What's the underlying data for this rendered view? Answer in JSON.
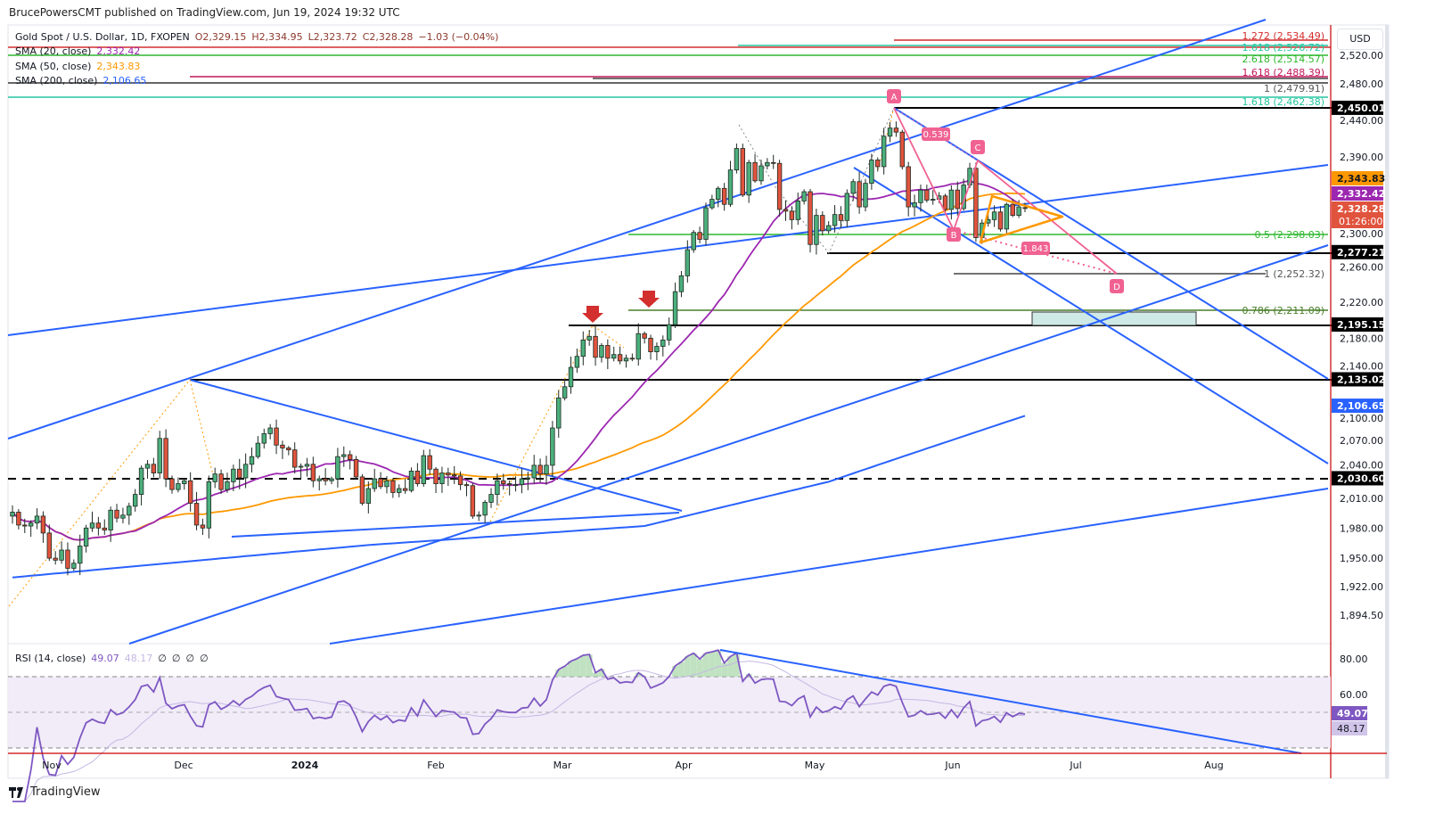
{
  "publisher_line": "BrucePowersCMT published on TradingView.com, Jun 19, 2024 19:32 UTC",
  "header": {
    "symbol": "Gold Spot / U.S. Dollar, 1D, FXOPEN",
    "open": "O2,329.15",
    "high": "H2,334.95",
    "low": "L2,323.72",
    "close": "C2,328.28",
    "change": "−1.03 (−0.04%)"
  },
  "legend": {
    "sma20": {
      "label": "SMA (20, close)",
      "value": "2,332.42",
      "color": "#9c27b0"
    },
    "sma50": {
      "label": "SMA (50, close)",
      "value": "2,343.83",
      "color": "#ff9800"
    },
    "sma200": {
      "label": "SMA (200, close)",
      "value": "2,106.65",
      "color": "#2962ff"
    }
  },
  "currency_button": "USD",
  "chart_data": {
    "type": "candlestick",
    "symbol": "XAUUSD",
    "timeframe": "1D",
    "y_scale": "log",
    "ylim": [
      1880,
      2545
    ],
    "grid": false,
    "closes": [
      1996,
      1983,
      1982,
      1985,
      1992,
      1975,
      1950,
      1948,
      1958,
      1940,
      1945,
      1962,
      1980,
      1985,
      1980,
      1978,
      1998,
      1990,
      1993,
      2002,
      2014,
      2041,
      2045,
      2036,
      2072,
      2030,
      2019,
      2025,
      2028,
      2005,
      1983,
      1980,
      2027,
      2035,
      2019,
      2027,
      2040,
      2031,
      2045,
      2053,
      2067,
      2077,
      2083,
      2065,
      2062,
      2060,
      2042,
      2043,
      2045,
      2028,
      2030,
      2028,
      2030,
      2053,
      2055,
      2050,
      2032,
      2005,
      2020,
      2030,
      2022,
      2028,
      2016,
      2020,
      2018,
      2038,
      2025,
      2054,
      2040,
      2025,
      2036,
      2034,
      2033,
      2024,
      2023,
      1992,
      1993,
      2006,
      2014,
      2028,
      2025,
      2024,
      2024,
      2030,
      2031,
      2044,
      2035,
      2044,
      2083,
      2115,
      2127,
      2148,
      2160,
      2178,
      2182,
      2159,
      2172,
      2158,
      2162,
      2155,
      2158,
      2157,
      2185,
      2180,
      2165,
      2171,
      2178,
      2195,
      2232,
      2250,
      2280,
      2300,
      2292,
      2329,
      2339,
      2352,
      2333,
      2374,
      2400,
      2344,
      2383,
      2361,
      2379,
      2383,
      2382,
      2327,
      2325,
      2315,
      2337,
      2348,
      2286,
      2320,
      2302,
      2308,
      2321,
      2314,
      2346,
      2360,
      2330,
      2358,
      2386,
      2378,
      2415,
      2425,
      2420,
      2378,
      2330,
      2335,
      2350,
      2338,
      2339,
      2343,
      2327,
      2350,
      2328,
      2356,
      2376,
      2294,
      2311,
      2315,
      2324,
      2304,
      2333,
      2320,
      2330,
      2328
    ],
    "sma200_anchors": [
      [
        0,
        1931
      ],
      [
        58,
        1963
      ],
      [
        103,
        1982
      ],
      [
        133,
        2027
      ],
      [
        170,
        2106.65
      ]
    ],
    "last": {
      "open": 2329.15,
      "high": 2334.95,
      "low": 2323.72,
      "close": 2328.28
    },
    "colors": {
      "up": "#4caf7d",
      "down": "#e0533d",
      "sma20": "#9c27b0",
      "sma50": "#ff9800",
      "sma200": "#2962ff",
      "trendline": "#2962ff",
      "pattern": "#f06292"
    }
  },
  "price_axis": {
    "ticks": [
      "2,520.00",
      "2,480.00",
      "2,440.00",
      "2,390.00",
      "2,300.00",
      "2,260.00",
      "2,220.00",
      "2,180.00",
      "2,140.00",
      "2,100.00",
      "2,070.00",
      "2,040.00",
      "2,010.00",
      "1,980.00",
      "1,950.00",
      "1,922.00",
      "1,894.50"
    ],
    "badges": [
      {
        "value": "2,450.01",
        "color": "#000000"
      },
      {
        "value": "2,343.83",
        "color": "#ff9800"
      },
      {
        "value": "2,332.42",
        "color": "#9c27b0"
      },
      {
        "value": "2,328.28",
        "countdown": "01:26:00",
        "color": "#e0533d"
      },
      {
        "value": "2,277.21",
        "color": "#000000"
      },
      {
        "value": "2,195.15",
        "color": "#000000"
      },
      {
        "value": "2,135.02",
        "color": "#000000"
      },
      {
        "value": "2,106.65",
        "color": "#2962ff"
      },
      {
        "value": "2,030.60",
        "color": "#000000"
      }
    ]
  },
  "fib_labels": [
    {
      "text": "1.272 (2,534.49)",
      "color": "#d32f2f"
    },
    {
      "text": "1.618 (2,526.72)",
      "color": "#26c6a0"
    },
    {
      "text": "2.618 (2,514.57)",
      "color": "#2eb82e"
    },
    {
      "text": "1.618 (2,488.39)",
      "color": "#c2185b"
    },
    {
      "text": "1 (2,479.91)",
      "color": "#555555"
    },
    {
      "text": "1.618 (2,462.38)",
      "color": "#26c6a0"
    },
    {
      "text": "0.5 (2,298.03)",
      "color": "#2eb82e"
    },
    {
      "text": "1 (2,252.32)",
      "color": "#555555"
    },
    {
      "text": "0.786 (2,211.09)",
      "color": "#4a7f2a"
    }
  ],
  "pattern": {
    "points": [
      "A",
      "B",
      "C",
      "D"
    ],
    "ratio_bc": "0.539",
    "ratio_cd": "1.843"
  },
  "time_axis": [
    "Nov",
    "Dec",
    "2024",
    "Feb",
    "Mar",
    "Apr",
    "May",
    "Jun",
    "Jul",
    "Aug"
  ],
  "rsi": {
    "label": "RSI (14, close)",
    "value": "49.07",
    "ma_value": "48.17",
    "extra": [
      "∅",
      "∅",
      "∅",
      "∅"
    ],
    "ticks": [
      "80.00",
      "60.00"
    ],
    "color": "#7e57c2"
  },
  "footer_logo": "TradingView"
}
